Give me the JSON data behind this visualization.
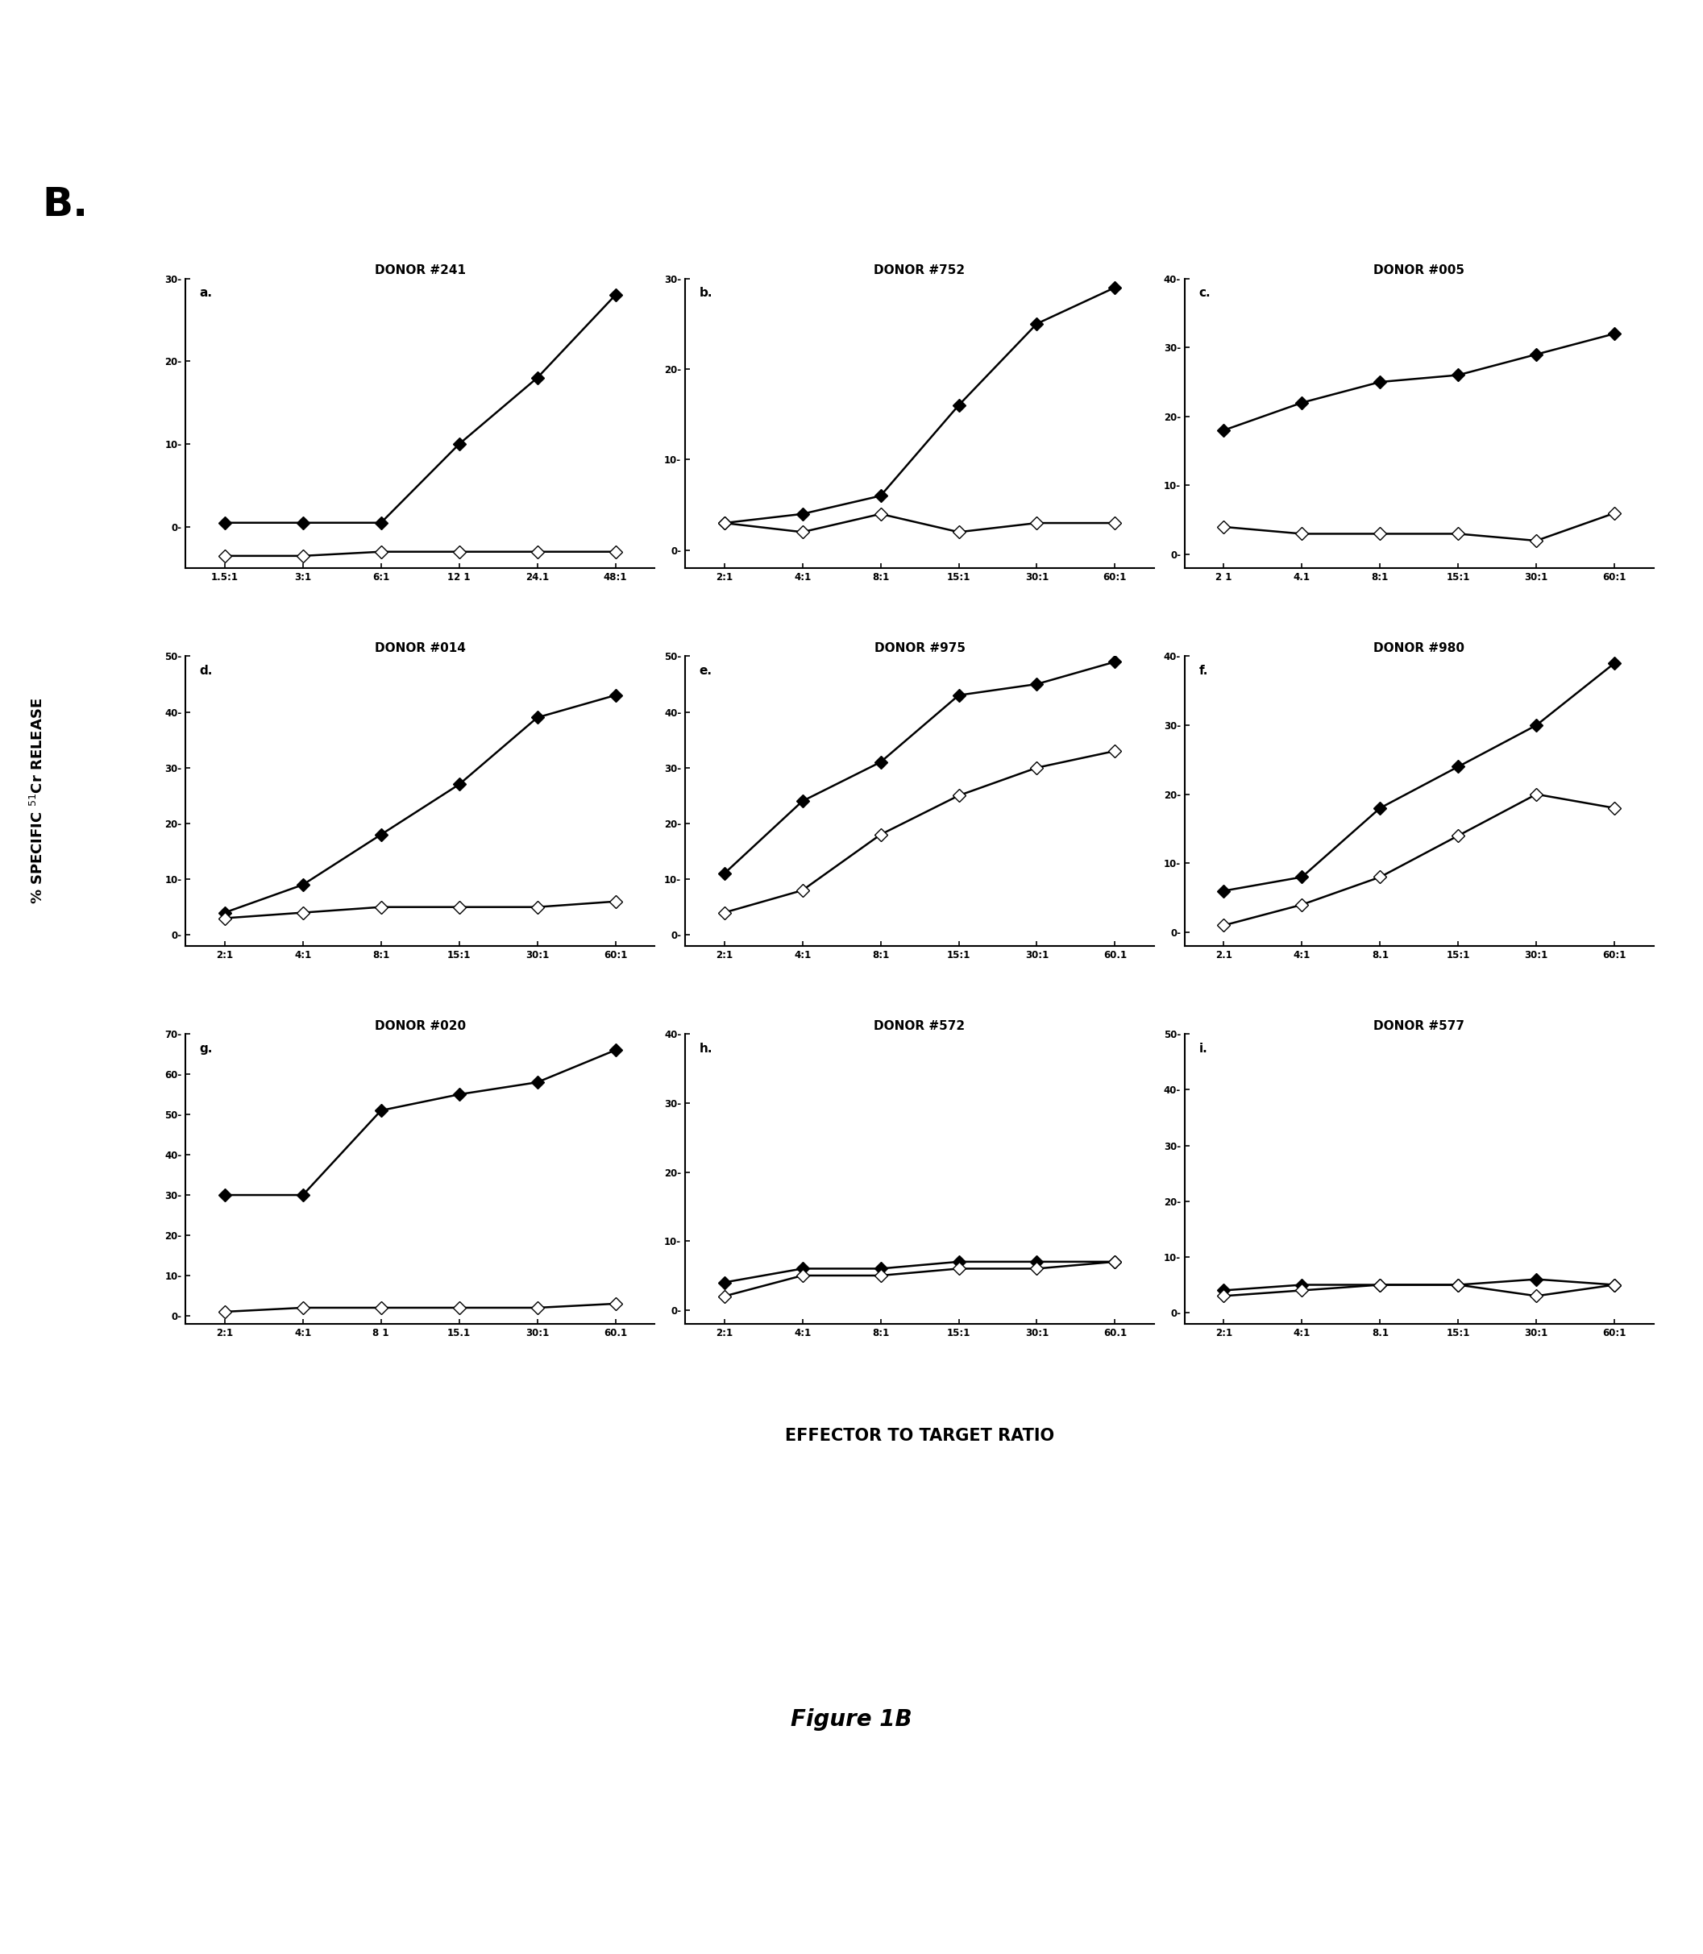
{
  "panels": [
    {
      "label": "a.",
      "title": "DONOR #241",
      "x_ticks": [
        "1.5:1",
        "3:1",
        "6:1",
        "12 1",
        "24.1",
        "48:1"
      ],
      "x_vals": [
        1,
        2,
        3,
        4,
        5,
        6
      ],
      "ylim": [
        -5,
        30
      ],
      "yticks": [
        0,
        10,
        20,
        30
      ],
      "ytick_labels": [
        "0-",
        "10-",
        "20-",
        "30-"
      ],
      "solid": [
        0.5,
        0.5,
        0.5,
        10,
        18,
        28
      ],
      "open": [
        -3.5,
        -3.5,
        -3.0,
        -3.0,
        -3.0,
        -3.0
      ]
    },
    {
      "label": "b.",
      "title": "DONOR #752",
      "x_ticks": [
        "2:1",
        "4:1",
        "8:1",
        "15:1",
        "30:1",
        "60:1"
      ],
      "x_vals": [
        1,
        2,
        3,
        4,
        5,
        6
      ],
      "ylim": [
        -2,
        30
      ],
      "yticks": [
        0,
        10,
        20,
        30
      ],
      "ytick_labels": [
        "0-",
        "10-",
        "20-",
        "30-"
      ],
      "solid": [
        3,
        4,
        6,
        16,
        25,
        29
      ],
      "open": [
        3,
        2,
        4,
        2,
        3,
        3
      ]
    },
    {
      "label": "c.",
      "title": "DONOR #005",
      "x_ticks": [
        "2 1",
        "4.1",
        "8:1",
        "15:1",
        "30:1",
        "60:1"
      ],
      "x_vals": [
        1,
        2,
        3,
        4,
        5,
        6
      ],
      "ylim": [
        -2,
        40
      ],
      "yticks": [
        0,
        10,
        20,
        30,
        40
      ],
      "ytick_labels": [
        "0-",
        "10-",
        "20-",
        "30-",
        "40-"
      ],
      "solid": [
        18,
        22,
        25,
        26,
        29,
        32
      ],
      "open": [
        4,
        3,
        3,
        3,
        2,
        6
      ]
    },
    {
      "label": "d.",
      "title": "DONOR #014",
      "x_ticks": [
        "2:1",
        "4:1",
        "8:1",
        "15:1",
        "30:1",
        "60:1"
      ],
      "x_vals": [
        1,
        2,
        3,
        4,
        5,
        6
      ],
      "ylim": [
        -2,
        50
      ],
      "yticks": [
        0,
        10,
        20,
        30,
        40,
        50
      ],
      "ytick_labels": [
        "0-",
        "10-",
        "20-",
        "30-",
        "40-",
        "50-"
      ],
      "solid": [
        4,
        9,
        18,
        27,
        39,
        43
      ],
      "open": [
        3,
        4,
        5,
        5,
        5,
        6
      ]
    },
    {
      "label": "e.",
      "title": "DONOR #975",
      "x_ticks": [
        "2:1",
        "4:1",
        "8:1",
        "15:1",
        "30:1",
        "60.1"
      ],
      "x_vals": [
        1,
        2,
        3,
        4,
        5,
        6
      ],
      "ylim": [
        -2,
        50
      ],
      "yticks": [
        0,
        10,
        20,
        30,
        40,
        50
      ],
      "ytick_labels": [
        "0-",
        "10-",
        "20-",
        "30-",
        "40-",
        "50-"
      ],
      "solid": [
        11,
        24,
        31,
        43,
        45,
        49
      ],
      "open": [
        4,
        8,
        18,
        25,
        30,
        33
      ]
    },
    {
      "label": "f.",
      "title": "DONOR #980",
      "x_ticks": [
        "2.1",
        "4:1",
        "8.1",
        "15:1",
        "30:1",
        "60:1"
      ],
      "x_vals": [
        1,
        2,
        3,
        4,
        5,
        6
      ],
      "ylim": [
        -2,
        40
      ],
      "yticks": [
        0,
        10,
        20,
        30,
        40
      ],
      "ytick_labels": [
        "0-",
        "10-",
        "20-",
        "30-",
        "40-"
      ],
      "solid": [
        6,
        8,
        18,
        24,
        30,
        39
      ],
      "open": [
        1,
        4,
        8,
        14,
        20,
        18
      ]
    },
    {
      "label": "g.",
      "title": "DONOR #020",
      "x_ticks": [
        "2:1",
        "4:1",
        "8 1",
        "15.1",
        "30:1",
        "60.1"
      ],
      "x_vals": [
        1,
        2,
        3,
        4,
        5,
        6
      ],
      "ylim": [
        -2,
        70
      ],
      "yticks": [
        0,
        10,
        20,
        30,
        40,
        50,
        60,
        70
      ],
      "ytick_labels": [
        "0-",
        "10-",
        "20-",
        "30-",
        "40-",
        "50-",
        "60-",
        "70-"
      ],
      "solid": [
        30,
        30,
        51,
        55,
        58,
        66
      ],
      "open": [
        1,
        2,
        2,
        2,
        2,
        3
      ]
    },
    {
      "label": "h.",
      "title": "DONOR #572",
      "x_ticks": [
        "2:1",
        "4:1",
        "8:1",
        "15:1",
        "30:1",
        "60.1"
      ],
      "x_vals": [
        1,
        2,
        3,
        4,
        5,
        6
      ],
      "ylim": [
        -2,
        40
      ],
      "yticks": [
        0,
        10,
        20,
        30,
        40
      ],
      "ytick_labels": [
        "0-",
        "10-",
        "20-",
        "30-",
        "40-"
      ],
      "solid": [
        4,
        6,
        6,
        7,
        7,
        7
      ],
      "open": [
        2,
        5,
        5,
        6,
        6,
        7
      ]
    },
    {
      "label": "i.",
      "title": "DONOR #577",
      "x_ticks": [
        "2:1",
        "4:1",
        "8.1",
        "15:1",
        "30:1",
        "60:1"
      ],
      "x_vals": [
        1,
        2,
        3,
        4,
        5,
        6
      ],
      "ylim": [
        -2,
        50
      ],
      "yticks": [
        0,
        10,
        20,
        30,
        40,
        50
      ],
      "ytick_labels": [
        "0-",
        "10-",
        "20-",
        "30-",
        "40-",
        "50-"
      ],
      "solid": [
        4,
        5,
        5,
        5,
        6,
        5
      ],
      "open": [
        3,
        4,
        5,
        5,
        3,
        5
      ]
    }
  ],
  "ylabel": "% SPECIFIC  ⁵¹Cr RELEASE",
  "xlabel": "EFFECTOR TO TARGET RATIO",
  "figure_label": "B.",
  "figure_caption": "Figure 1B",
  "bg_color": "#ffffff",
  "line_color": "#000000"
}
